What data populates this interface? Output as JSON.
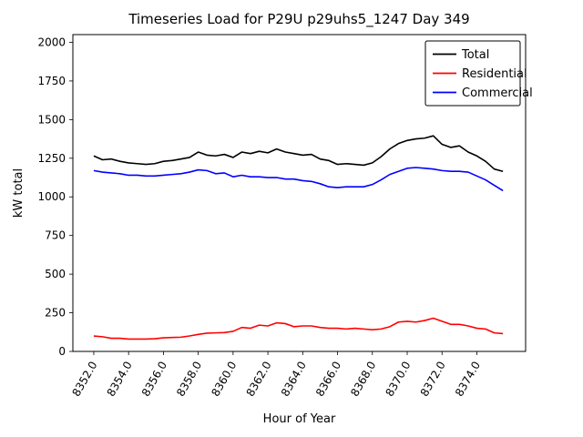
{
  "figure": {
    "title": "Timeseries Load for P29U p29uhs5_1247  Day 349",
    "xlabel": "Hour of Year",
    "ylabel": "kW total"
  },
  "chart_data": {
    "type": "line",
    "title": "Timeseries Load for P29U p29uhs5_1247  Day 349",
    "xlabel": "Hour of Year",
    "ylabel": "kW total",
    "xlim": [
      8350.8,
      8376.8
    ],
    "ylim": [
      0,
      2050
    ],
    "grid": false,
    "legend_position": "upper right",
    "x_ticks": [
      8352,
      8354,
      8356,
      8358,
      8360,
      8362,
      8364,
      8366,
      8368,
      8370,
      8372,
      8374
    ],
    "x_tick_labels": [
      "8352.0",
      "8354.0",
      "8356.0",
      "8358.0",
      "8360.0",
      "8362.0",
      "8364.0",
      "8366.0",
      "8368.0",
      "8370.0",
      "8372.0",
      "8374.0"
    ],
    "y_ticks": [
      0,
      250,
      500,
      750,
      1000,
      1250,
      1500,
      1750,
      2000
    ],
    "y_tick_labels": [
      "0",
      "250",
      "500",
      "750",
      "1000",
      "1250",
      "1500",
      "1750",
      "2000"
    ],
    "x": [
      8352.0,
      8352.5,
      8353.0,
      8353.5,
      8354.0,
      8354.5,
      8355.0,
      8355.5,
      8356.0,
      8356.5,
      8357.0,
      8357.5,
      8358.0,
      8358.5,
      8359.0,
      8359.5,
      8360.0,
      8360.5,
      8361.0,
      8361.5,
      8362.0,
      8362.5,
      8363.0,
      8363.5,
      8364.0,
      8364.5,
      8365.0,
      8365.5,
      8366.0,
      8366.5,
      8367.0,
      8367.5,
      8368.0,
      8368.5,
      8369.0,
      8369.5,
      8370.0,
      8370.5,
      8371.0,
      8371.5,
      8372.0,
      8372.5,
      8373.0,
      8373.5,
      8374.0,
      8374.5,
      8375.0,
      8375.5
    ],
    "series": [
      {
        "name": "Total",
        "color": "#000000",
        "values": [
          1265,
          1240,
          1245,
          1230,
          1220,
          1215,
          1210,
          1215,
          1230,
          1235,
          1245,
          1255,
          1290,
          1270,
          1265,
          1275,
          1255,
          1290,
          1280,
          1295,
          1285,
          1310,
          1290,
          1280,
          1270,
          1275,
          1245,
          1235,
          1210,
          1215,
          1210,
          1205,
          1220,
          1260,
          1310,
          1345,
          1365,
          1375,
          1380,
          1395,
          1340,
          1320,
          1330,
          1290,
          1265,
          1230,
          1180,
          1165
        ]
      },
      {
        "name": "Residential",
        "color": "#ff0000",
        "values": [
          100,
          95,
          85,
          85,
          80,
          80,
          80,
          82,
          88,
          90,
          92,
          100,
          110,
          118,
          120,
          122,
          130,
          155,
          150,
          170,
          165,
          185,
          180,
          160,
          165,
          165,
          155,
          150,
          150,
          145,
          150,
          145,
          140,
          145,
          160,
          190,
          195,
          190,
          200,
          215,
          195,
          175,
          175,
          165,
          150,
          145,
          120,
          115
        ]
      },
      {
        "name": "Commercial",
        "color": "#0000ff",
        "values": [
          1170,
          1160,
          1155,
          1150,
          1140,
          1140,
          1135,
          1135,
          1140,
          1145,
          1150,
          1160,
          1175,
          1170,
          1150,
          1155,
          1130,
          1140,
          1130,
          1130,
          1125,
          1125,
          1115,
          1115,
          1105,
          1100,
          1085,
          1065,
          1060,
          1065,
          1065,
          1065,
          1080,
          1110,
          1145,
          1165,
          1185,
          1190,
          1185,
          1180,
          1170,
          1165,
          1165,
          1160,
          1135,
          1110,
          1075,
          1040
        ]
      }
    ]
  }
}
